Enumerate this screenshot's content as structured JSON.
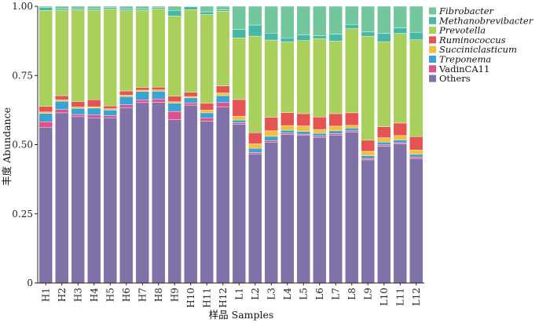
{
  "chart_data": {
    "type": "bar",
    "stacked": true,
    "categories": [
      "H1",
      "H2",
      "H3",
      "H4",
      "H5",
      "H6",
      "H7",
      "H8",
      "H9",
      "H10",
      "H11",
      "H12",
      "L1",
      "L2",
      "L3",
      "L4",
      "L5",
      "L6",
      "L7",
      "L8",
      "L9",
      "L10",
      "L11",
      "L12"
    ],
    "xlabel": "样品  Samples",
    "ylabel": "丰度  Abundance",
    "ylim": [
      0,
      1
    ],
    "yticks": [
      "0",
      "0.25",
      "0.50",
      "0.75",
      "1.00"
    ],
    "ytick_values": [
      0,
      0.25,
      0.5,
      0.75,
      1.0
    ],
    "grid": false,
    "legend_position": "right",
    "series": [
      {
        "name": "Others",
        "italic": false,
        "color": "#8071A8",
        "values": [
          0.563,
          0.615,
          0.601,
          0.597,
          0.597,
          0.634,
          0.652,
          0.653,
          0.59,
          0.643,
          0.585,
          0.637,
          0.574,
          0.467,
          0.509,
          0.537,
          0.533,
          0.526,
          0.535,
          0.545,
          0.445,
          0.494,
          0.502,
          0.45
        ]
      },
      {
        "name": "VadinCA11",
        "italic": false,
        "color": "#E0508A",
        "values": [
          0.02,
          0.012,
          0.008,
          0.01,
          0.008,
          0.01,
          0.01,
          0.012,
          0.03,
          0.008,
          0.012,
          0.015,
          0.005,
          0.005,
          0.006,
          0.005,
          0.005,
          0.005,
          0.005,
          0.005,
          0.005,
          0.005,
          0.005,
          0.005
        ]
      },
      {
        "name": "Treponema",
        "italic": true,
        "color": "#3BA3D4",
        "values": [
          0.03,
          0.03,
          0.022,
          0.025,
          0.02,
          0.03,
          0.03,
          0.028,
          0.03,
          0.018,
          0.018,
          0.025,
          0.01,
          0.015,
          0.015,
          0.01,
          0.01,
          0.01,
          0.01,
          0.01,
          0.01,
          0.01,
          0.01,
          0.01
        ]
      },
      {
        "name": "Succiniclasticum",
        "italic": true,
        "color": "#F2C03C",
        "values": [
          0.005,
          0.005,
          0.005,
          0.005,
          0.005,
          0.005,
          0.005,
          0.005,
          0.005,
          0.005,
          0.01,
          0.01,
          0.014,
          0.016,
          0.02,
          0.017,
          0.02,
          0.014,
          0.017,
          0.01,
          0.016,
          0.016,
          0.016,
          0.016
        ]
      },
      {
        "name": "Ruminococcus",
        "italic": true,
        "color": "#E65353",
        "values": [
          0.02,
          0.015,
          0.02,
          0.025,
          0.01,
          0.015,
          0.01,
          0.01,
          0.02,
          0.015,
          0.025,
          0.025,
          0.06,
          0.04,
          0.049,
          0.047,
          0.044,
          0.045,
          0.045,
          0.045,
          0.04,
          0.04,
          0.045,
          0.048
        ]
      },
      {
        "name": "Prevotella",
        "italic": true,
        "color": "#A8D05A",
        "values": [
          0.347,
          0.308,
          0.33,
          0.323,
          0.35,
          0.29,
          0.278,
          0.283,
          0.29,
          0.299,
          0.32,
          0.27,
          0.223,
          0.349,
          0.279,
          0.255,
          0.264,
          0.283,
          0.262,
          0.304,
          0.376,
          0.307,
          0.324,
          0.35
        ]
      },
      {
        "name": "Methanobrevibacter",
        "italic": true,
        "color": "#46B8A8",
        "values": [
          0.01,
          0.005,
          0.005,
          0.005,
          0.005,
          0.005,
          0.005,
          0.004,
          0.02,
          0.01,
          0.01,
          0.005,
          0.03,
          0.04,
          0.025,
          0.015,
          0.02,
          0.01,
          0.025,
          0.015,
          0.015,
          0.03,
          0.02,
          0.027
        ]
      },
      {
        "name": "Fibrobacter",
        "italic": true,
        "color": "#74C69D",
        "values": [
          0.005,
          0.01,
          0.009,
          0.01,
          0.005,
          0.011,
          0.01,
          0.005,
          0.015,
          0.002,
          0.02,
          0.013,
          0.084,
          0.068,
          0.097,
          0.114,
          0.104,
          0.107,
          0.101,
          0.066,
          0.093,
          0.098,
          0.078,
          0.094
        ]
      }
    ],
    "legend_order": [
      "Fibrobacter",
      "Methanobrevibacter",
      "Prevotella",
      "Ruminococcus",
      "Succiniclasticum",
      "Treponema",
      "VadinCA11",
      "Others"
    ]
  }
}
